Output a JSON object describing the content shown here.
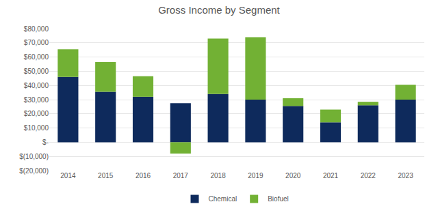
{
  "chart_data": {
    "type": "bar",
    "title": "Gross Income by Segment",
    "categories": [
      "2014",
      "2015",
      "2016",
      "2017",
      "2018",
      "2019",
      "2020",
      "2021",
      "2022",
      "2023"
    ],
    "series": [
      {
        "name": "Chemical",
        "color": "#0e2a5c",
        "values": [
          46000,
          35500,
          32000,
          27500,
          34000,
          30000,
          25500,
          14000,
          26000,
          30000
        ]
      },
      {
        "name": "Biofuel",
        "color": "#72b134",
        "values": [
          19500,
          21000,
          14500,
          -8000,
          39000,
          44000,
          5500,
          9000,
          2500,
          10500
        ]
      }
    ],
    "ylim": [
      -20000,
      80000
    ],
    "yticks": [
      {
        "value": -20000,
        "label": "$(20,000)"
      },
      {
        "value": -10000,
        "label": "$(10,000)"
      },
      {
        "value": 0,
        "label": "$-"
      },
      {
        "value": 10000,
        "label": "$10,000"
      },
      {
        "value": 20000,
        "label": "$20,000"
      },
      {
        "value": 30000,
        "label": "$30,000"
      },
      {
        "value": 40000,
        "label": "$40,000"
      },
      {
        "value": 50000,
        "label": "$50,000"
      },
      {
        "value": 60000,
        "label": "$60,000"
      },
      {
        "value": 70000,
        "label": "$70,000"
      },
      {
        "value": 80000,
        "label": "$80,000"
      }
    ],
    "stacked": true,
    "grid": true,
    "legend": "bottom"
  }
}
